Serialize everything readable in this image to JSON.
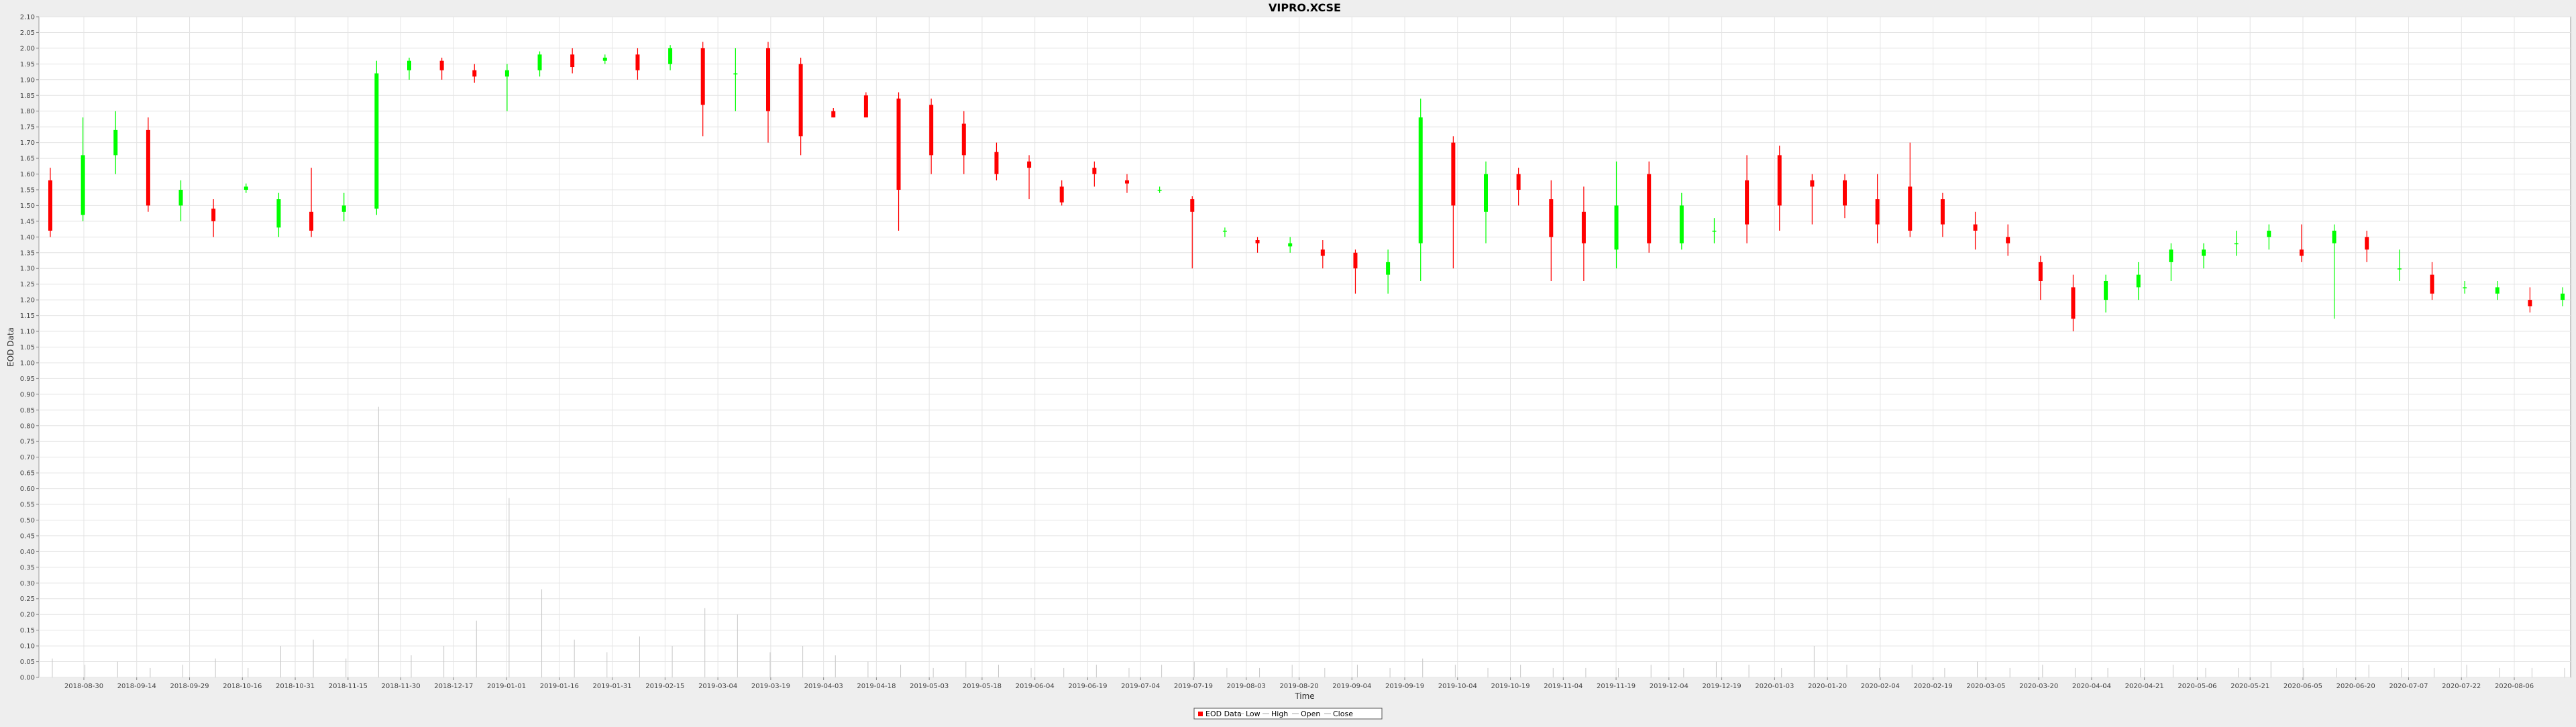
{
  "chart_data": {
    "type": "candlestick",
    "title": "VIPRO.XCSE",
    "xlabel": "Time",
    "ylabel": "EOD Data",
    "ylim": [
      0.0,
      2.1
    ],
    "y_ticks": [
      "0.00",
      "0.05",
      "0.10",
      "0.15",
      "0.20",
      "0.25",
      "0.30",
      "0.35",
      "0.40",
      "0.45",
      "0.50",
      "0.55",
      "0.60",
      "0.65",
      "0.70",
      "0.75",
      "0.80",
      "0.85",
      "0.90",
      "0.95",
      "1.00",
      "1.05",
      "1.10",
      "1.15",
      "1.20",
      "1.25",
      "1.30",
      "1.35",
      "1.40",
      "1.45",
      "1.50",
      "1.55",
      "1.60",
      "1.65",
      "1.70",
      "1.75",
      "1.80",
      "1.85",
      "1.90",
      "1.95",
      "2.00",
      "2.05",
      "2.10"
    ],
    "x_ticks": [
      "2018-08-30",
      "2018-09-14",
      "2018-09-29",
      "2018-10-16",
      "2018-10-31",
      "2018-11-15",
      "2018-11-30",
      "2018-12-17",
      "2019-01-01",
      "2019-01-16",
      "2019-01-31",
      "2019-02-15",
      "2019-03-04",
      "2019-03-19",
      "2019-04-03",
      "2019-04-18",
      "2019-05-03",
      "2019-05-18",
      "2019-06-04",
      "2019-06-19",
      "2019-07-04",
      "2019-07-19",
      "2019-08-03",
      "2019-08-20",
      "2019-09-04",
      "2019-09-19",
      "2019-10-04",
      "2019-10-19",
      "2019-11-04",
      "2019-11-19",
      "2019-12-04",
      "2019-12-19",
      "2020-01-03",
      "2020-01-20",
      "2020-02-04",
      "2020-02-19",
      "2020-03-05",
      "2020-03-20",
      "2020-04-04",
      "2020-04-21",
      "2020-05-06",
      "2020-05-21",
      "2020-06-05",
      "2020-06-20",
      "2020-07-07",
      "2020-07-22",
      "2020-08-06"
    ],
    "grid": true,
    "legend_position": "bottom",
    "legend": [
      "EOD Data",
      "Low",
      "High",
      "Open",
      "Close"
    ],
    "colors": {
      "up": "#00ff00",
      "down": "#ff0000",
      "volume": "#c8c8c8",
      "grid": "#e4e4e4",
      "plot_bg": "#ffffff",
      "page_bg": "#eeeeee"
    },
    "candles": [
      [
        0,
        1.58,
        1.42,
        1.62,
        1.4
      ],
      [
        1,
        1.47,
        1.66,
        1.78,
        1.45
      ],
      [
        2,
        1.66,
        1.74,
        1.8,
        1.6
      ],
      [
        3,
        1.74,
        1.5,
        1.78,
        1.48
      ],
      [
        4,
        1.5,
        1.55,
        1.58,
        1.45
      ],
      [
        5,
        1.49,
        1.45,
        1.52,
        1.4
      ],
      [
        6,
        1.55,
        1.56,
        1.57,
        1.54
      ],
      [
        7,
        1.43,
        1.52,
        1.54,
        1.4
      ],
      [
        8,
        1.48,
        1.42,
        1.62,
        1.4
      ],
      [
        9,
        1.48,
        1.5,
        1.54,
        1.45
      ],
      [
        10,
        1.49,
        1.92,
        1.96,
        1.47
      ],
      [
        11,
        1.93,
        1.96,
        1.97,
        1.9
      ],
      [
        12,
        1.96,
        1.93,
        1.97,
        1.9
      ],
      [
        13,
        1.93,
        1.91,
        1.95,
        1.89
      ],
      [
        14,
        1.91,
        1.93,
        1.95,
        1.8
      ],
      [
        15,
        1.93,
        1.98,
        1.99,
        1.91
      ],
      [
        16,
        1.98,
        1.94,
        2.0,
        1.92
      ],
      [
        17,
        1.96,
        1.97,
        1.98,
        1.95
      ],
      [
        18,
        1.98,
        1.93,
        2.0,
        1.9
      ],
      [
        19,
        1.95,
        2.0,
        2.01,
        1.93
      ],
      [
        20,
        2.0,
        1.82,
        2.02,
        1.72
      ],
      [
        21,
        1.92,
        1.92,
        2.0,
        1.8
      ],
      [
        22,
        2.0,
        1.8,
        2.02,
        1.7
      ],
      [
        23,
        1.95,
        1.72,
        1.97,
        1.66
      ],
      [
        24,
        1.8,
        1.78,
        1.81,
        1.78
      ],
      [
        25,
        1.85,
        1.78,
        1.86,
        1.78
      ],
      [
        26,
        1.84,
        1.55,
        1.86,
        1.42
      ],
      [
        27,
        1.82,
        1.66,
        1.84,
        1.6
      ],
      [
        28,
        1.76,
        1.66,
        1.8,
        1.6
      ],
      [
        29,
        1.67,
        1.6,
        1.7,
        1.58
      ],
      [
        30,
        1.64,
        1.62,
        1.66,
        1.52
      ],
      [
        31,
        1.56,
        1.51,
        1.58,
        1.5
      ],
      [
        32,
        1.62,
        1.6,
        1.64,
        1.56
      ],
      [
        33,
        1.58,
        1.57,
        1.6,
        1.54
      ],
      [
        34,
        1.55,
        1.55,
        1.56,
        1.54
      ],
      [
        35,
        1.52,
        1.48,
        1.53,
        1.3
      ],
      [
        36,
        1.42,
        1.42,
        1.43,
        1.4
      ],
      [
        37,
        1.39,
        1.38,
        1.4,
        1.35
      ],
      [
        38,
        1.37,
        1.38,
        1.4,
        1.35
      ],
      [
        39,
        1.36,
        1.34,
        1.39,
        1.3
      ],
      [
        40,
        1.35,
        1.3,
        1.36,
        1.22
      ],
      [
        41,
        1.28,
        1.32,
        1.36,
        1.22
      ],
      [
        42,
        1.38,
        1.78,
        1.84,
        1.26
      ],
      [
        43,
        1.7,
        1.5,
        1.72,
        1.3
      ],
      [
        44,
        1.48,
        1.6,
        1.64,
        1.38
      ],
      [
        45,
        1.6,
        1.55,
        1.62,
        1.5
      ],
      [
        46,
        1.52,
        1.4,
        1.58,
        1.26
      ],
      [
        47,
        1.48,
        1.38,
        1.56,
        1.26
      ],
      [
        48,
        1.36,
        1.5,
        1.64,
        1.3
      ],
      [
        49,
        1.6,
        1.38,
        1.64,
        1.35
      ],
      [
        50,
        1.38,
        1.5,
        1.54,
        1.36
      ],
      [
        51,
        1.42,
        1.42,
        1.46,
        1.38
      ],
      [
        52,
        1.58,
        1.44,
        1.66,
        1.38
      ],
      [
        53,
        1.66,
        1.5,
        1.69,
        1.42
      ],
      [
        54,
        1.58,
        1.56,
        1.6,
        1.44
      ],
      [
        55,
        1.58,
        1.5,
        1.6,
        1.46
      ],
      [
        56,
        1.52,
        1.44,
        1.6,
        1.38
      ],
      [
        57,
        1.56,
        1.42,
        1.7,
        1.4
      ],
      [
        58,
        1.52,
        1.44,
        1.54,
        1.4
      ],
      [
        59,
        1.44,
        1.42,
        1.48,
        1.36
      ],
      [
        60,
        1.4,
        1.38,
        1.44,
        1.34
      ],
      [
        61,
        1.32,
        1.26,
        1.34,
        1.2
      ],
      [
        62,
        1.24,
        1.14,
        1.28,
        1.1
      ],
      [
        63,
        1.2,
        1.26,
        1.28,
        1.16
      ],
      [
        64,
        1.24,
        1.28,
        1.32,
        1.2
      ],
      [
        65,
        1.32,
        1.36,
        1.38,
        1.26
      ],
      [
        66,
        1.34,
        1.36,
        1.38,
        1.3
      ],
      [
        67,
        1.38,
        1.38,
        1.42,
        1.34
      ],
      [
        68,
        1.4,
        1.42,
        1.44,
        1.36
      ],
      [
        69,
        1.36,
        1.34,
        1.44,
        1.32
      ],
      [
        70,
        1.38,
        1.42,
        1.44,
        1.14
      ],
      [
        71,
        1.4,
        1.36,
        1.42,
        1.32
      ],
      [
        72,
        1.3,
        1.3,
        1.36,
        1.26
      ],
      [
        73,
        1.28,
        1.22,
        1.32,
        1.2
      ],
      [
        74,
        1.24,
        1.24,
        1.26,
        1.22
      ],
      [
        75,
        1.22,
        1.24,
        1.26,
        1.2
      ],
      [
        76,
        1.2,
        1.18,
        1.24,
        1.16
      ],
      [
        77,
        1.2,
        1.22,
        1.24,
        1.18
      ]
    ],
    "volume": [
      0.06,
      0.04,
      0.05,
      0.03,
      0.04,
      0.06,
      0.03,
      0.1,
      0.12,
      0.06,
      0.86,
      0.07,
      0.1,
      0.18,
      0.57,
      0.28,
      0.12,
      0.08,
      0.13,
      0.1,
      0.22,
      0.2,
      0.08,
      0.1,
      0.07,
      0.05,
      0.04,
      0.03,
      0.05,
      0.04,
      0.03,
      0.03,
      0.04,
      0.03,
      0.04,
      0.05,
      0.03,
      0.03,
      0.04,
      0.03,
      0.04,
      0.03,
      0.06,
      0.04,
      0.03,
      0.04,
      0.03,
      0.03,
      0.03,
      0.04,
      0.03,
      0.05,
      0.04,
      0.03,
      0.1,
      0.04,
      0.03,
      0.04,
      0.03,
      0.05,
      0.03,
      0.04,
      0.03,
      0.03,
      0.03,
      0.04,
      0.03,
      0.03,
      0.05,
      0.03,
      0.03,
      0.04,
      0.03,
      0.03,
      0.04,
      0.03,
      0.03,
      0.03
    ]
  }
}
